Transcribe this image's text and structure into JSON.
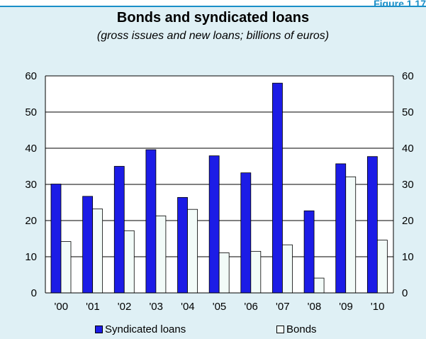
{
  "figure_label": "Figure 1.17",
  "chart_data": {
    "type": "bar",
    "title": "Bonds and syndicated loans",
    "subtitle": "(gross issues and new loans; billions of euros)",
    "categories": [
      "'00",
      "'01",
      "'02",
      "'03",
      "'04",
      "'05",
      "'06",
      "'07",
      "'08",
      "'09",
      "'10"
    ],
    "series": [
      {
        "name": "Syndicated loans",
        "color": "#1c1ce6",
        "values": [
          30.1,
          26.7,
          35.0,
          39.6,
          26.4,
          37.9,
          33.2,
          58.0,
          22.7,
          35.7,
          37.7
        ]
      },
      {
        "name": "Bonds",
        "color": "#f2fbf8",
        "values": [
          14.2,
          23.2,
          17.2,
          21.3,
          23.1,
          11.1,
          11.5,
          13.3,
          4.1,
          32.1,
          14.6
        ]
      }
    ],
    "ylim": [
      0,
      60
    ],
    "yticks": [
      "0",
      "10",
      "20",
      "30",
      "40",
      "50",
      "60"
    ],
    "grid": true,
    "legend_position": "bottom",
    "xlabel": "",
    "ylabel": ""
  }
}
